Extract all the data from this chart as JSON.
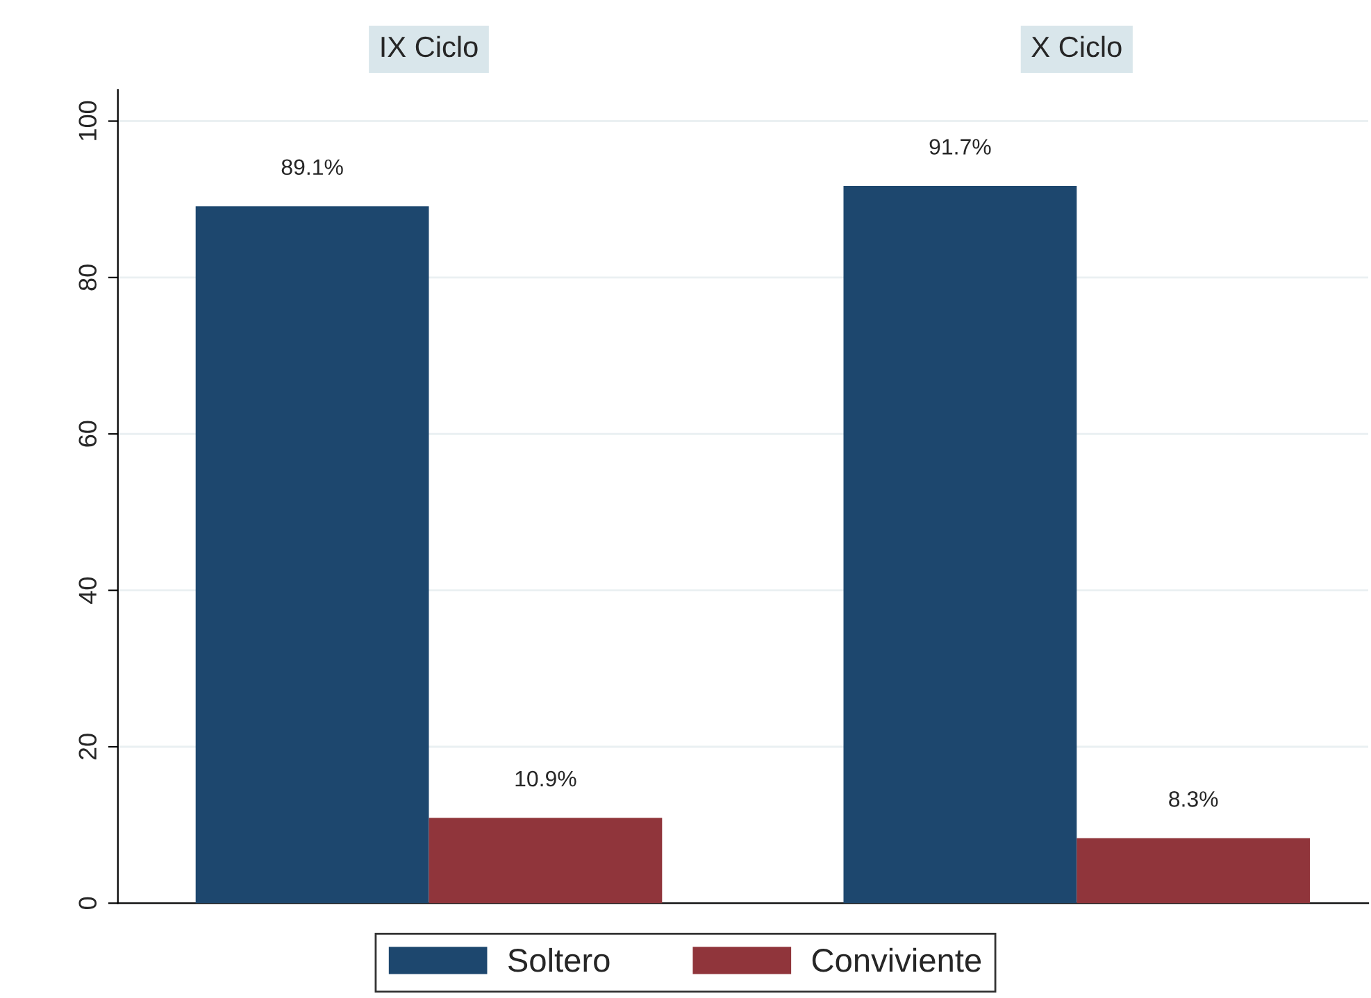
{
  "chart_data": {
    "type": "bar",
    "categories": [
      "IX Ciclo",
      "X Ciclo"
    ],
    "ylim": [
      0,
      104
    ],
    "yticks": [
      0,
      20,
      40,
      60,
      80,
      100
    ],
    "grid": "y",
    "legend": "bottom",
    "series": [
      {
        "name": "Soltero",
        "color": "#1d476e",
        "values": [
          89.1,
          91.7
        ],
        "value_labels": [
          "89.1%",
          "91.7%"
        ]
      },
      {
        "name": "Conviviente",
        "color": "#90353b",
        "values": [
          10.9,
          8.3
        ],
        "value_labels": [
          "10.9%",
          "8.3%"
        ]
      }
    ]
  }
}
